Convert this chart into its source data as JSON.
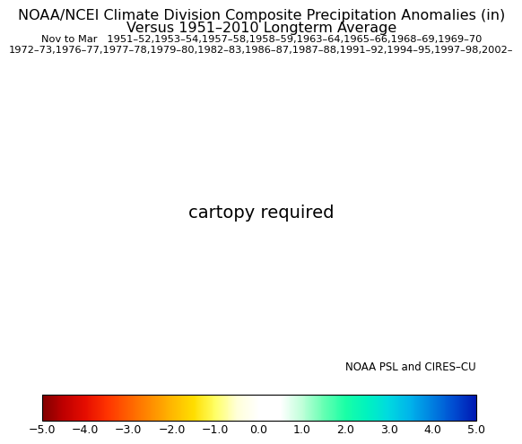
{
  "title_line1": "NOAA/NCEI Climate Division Composite Precipitation Anomalies (in)",
  "title_line2": "Versus 1951–2010 Longterm Average",
  "subtitle_line1": "Nov to Mar   1951–52,1953–54,1957–58,1958–59,1963–64,1965–66,1968–69,1969–70",
  "subtitle_line2": "1972–73,1976–77,1977–78,1979–80,1982–83,1986–87,1987–88,1991–92,1994–95,1997–98,2002–",
  "credit": "NOAA PSL and CIRES–CU",
  "colorbar_labels": [
    "−5.0",
    "−4.0",
    "−3.0",
    "−2.0",
    "−1.0",
    "0.0",
    "1.0",
    "2.0",
    "3.0",
    "4.0",
    "5.0"
  ],
  "colorbar_ticks": [
    -5,
    -4,
    -3,
    -2,
    -1,
    0,
    1,
    2,
    3,
    4,
    5
  ],
  "vmin": -5.0,
  "vmax": 5.0,
  "background_color": "#ffffff",
  "title_fontsize": 11.5,
  "subtitle_fontsize": 8.2,
  "credit_fontsize": 8.5,
  "colorbar_fontsize": 9,
  "state_edge_color": "#888888",
  "state_edge_width": 0.4,
  "coast_edge_width": 0.7
}
